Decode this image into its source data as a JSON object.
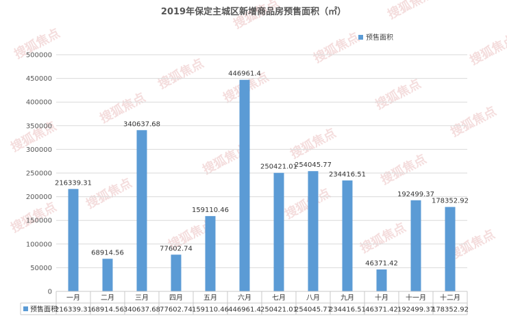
{
  "chart_data": {
    "type": "bar",
    "title": "2019年保定主城区新增商品房预售面积（㎡）",
    "categories": [
      "一月",
      "二月",
      "三月",
      "四月",
      "五月",
      "六月",
      "七月",
      "八月",
      "九月",
      "十月",
      "十一月",
      "十二月"
    ],
    "series": [
      {
        "name": "预售面积",
        "color": "#5b9bd5",
        "values": [
          216339.31,
          68914.56,
          340637.68,
          77602.74,
          159110.46,
          446961.4,
          250421.01,
          254045.77,
          234416.51,
          46371.42,
          192499.37,
          178352.92
        ]
      }
    ],
    "value_labels": [
      "216339.31",
      "68914.56",
      "340637.68",
      "77602.74",
      "159110.46",
      "446961.4",
      "250421.01",
      "254045.77",
      "234416.51",
      "46371.42",
      "192499.37",
      "178352.92"
    ],
    "yticks": [
      "0",
      "50000",
      "100000",
      "150000",
      "200000",
      "250000",
      "300000",
      "350000",
      "400000",
      "450000",
      "500000"
    ],
    "ylim": [
      0,
      500000
    ],
    "grid": true,
    "legend_position": "top-right",
    "data_table": true
  },
  "watermark": "搜狐焦点"
}
